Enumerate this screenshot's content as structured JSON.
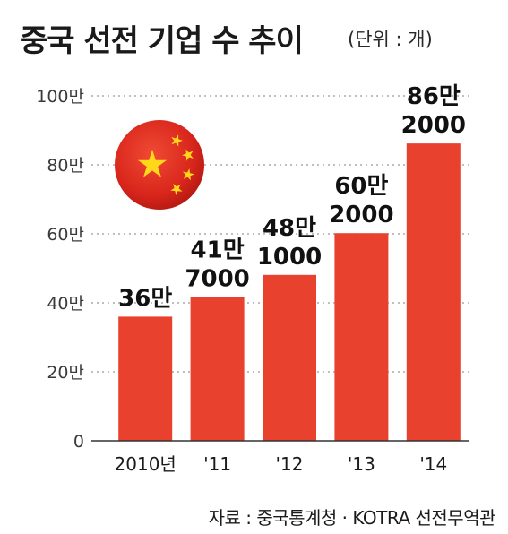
{
  "header": {
    "title": "중국 선전 기업 수 추이",
    "unit": "(단위 : 개)"
  },
  "footer": {
    "source": "자료 : 중국통계청 · KOTRA 선전무역관"
  },
  "colors": {
    "bar": "#e8412e",
    "flag_red": "#d9261c",
    "flag_star": "#ffd81a",
    "grid": "#999999",
    "axis": "#333333"
  },
  "chart_data": {
    "type": "bar",
    "categories": [
      "2010년",
      "'11",
      "'12",
      "'13",
      "'14"
    ],
    "values": [
      360000,
      417000,
      481000,
      602000,
      862000
    ],
    "data_labels": [
      [
        "36만"
      ],
      [
        "41만",
        "7000"
      ],
      [
        "48만",
        "1000"
      ],
      [
        "60만",
        "2000"
      ],
      [
        "86만",
        "2000"
      ]
    ],
    "y_ticks": [
      {
        "value": 0,
        "label": "0"
      },
      {
        "value": 200000,
        "label": "20만"
      },
      {
        "value": 400000,
        "label": "40만"
      },
      {
        "value": 600000,
        "label": "60만"
      },
      {
        "value": 800000,
        "label": "80만"
      },
      {
        "value": 1000000,
        "label": "100만"
      }
    ],
    "ylim": [
      0,
      1000000
    ],
    "grid": true,
    "legend": "none"
  }
}
